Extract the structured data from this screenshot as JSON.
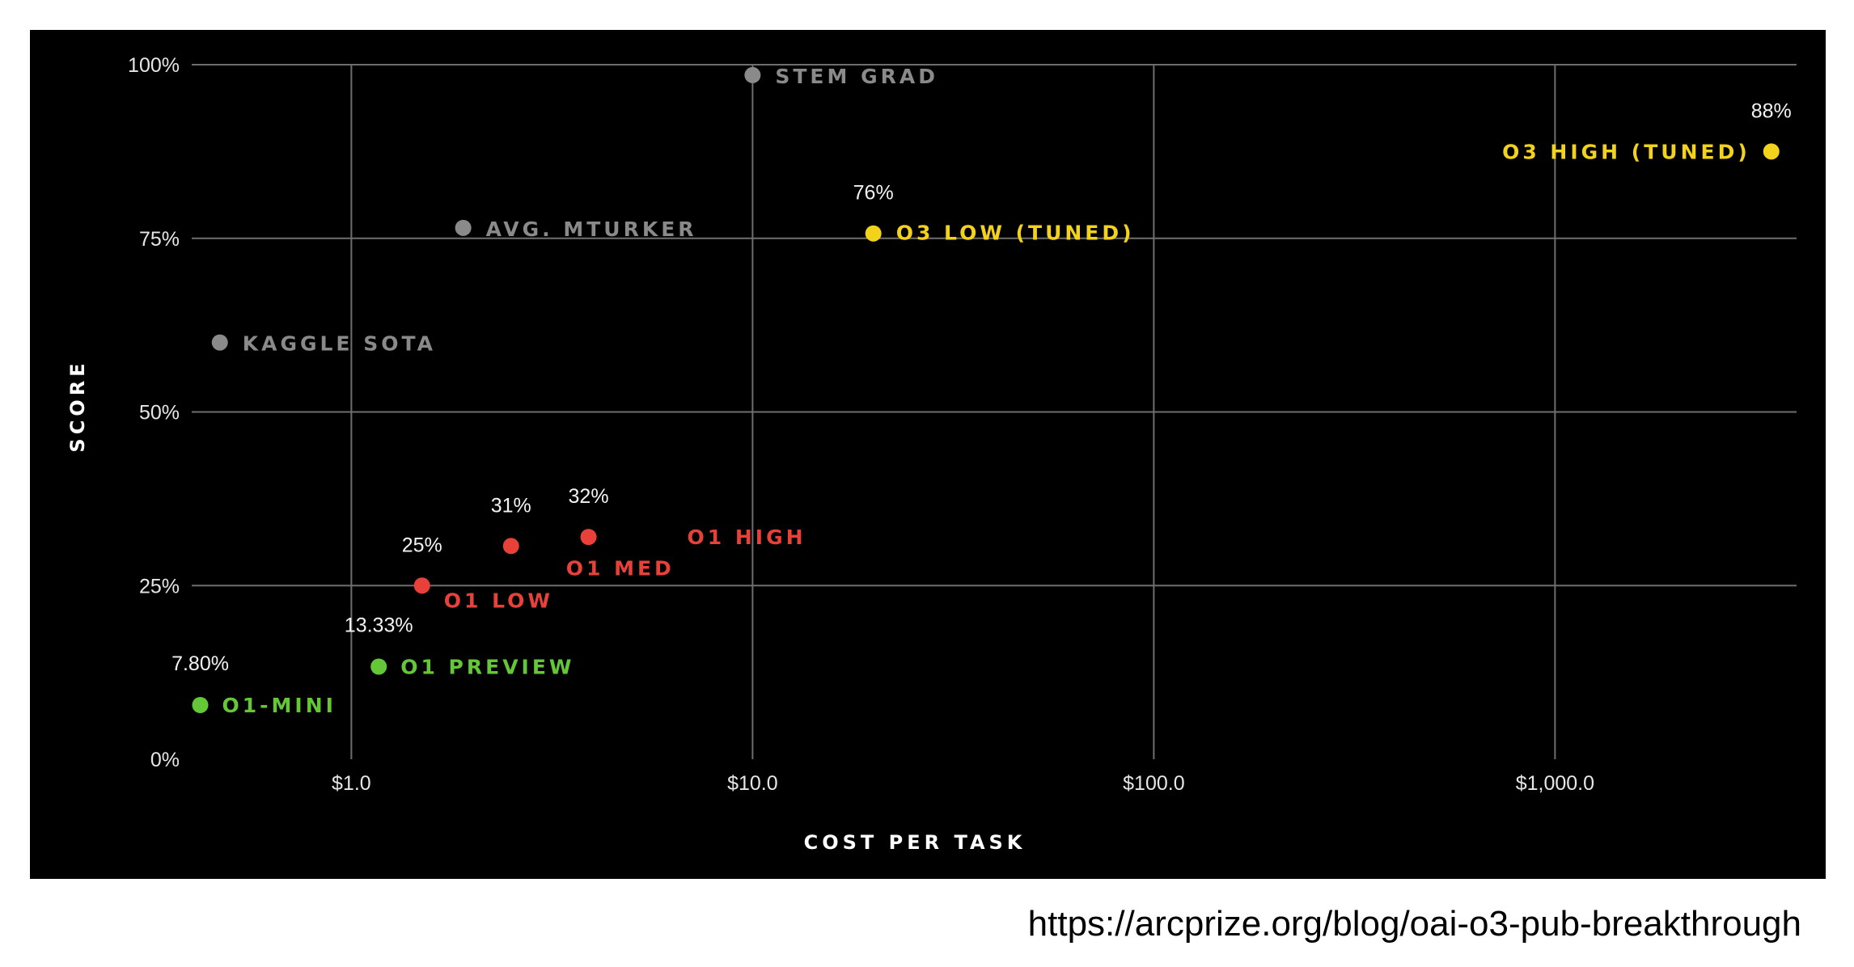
{
  "source_url": "https://arcprize.org/blog/oai-o3-pub-breakthrough",
  "colors": {
    "background": "#000000",
    "grid": "#6e6e6e",
    "human": "#8a8a8a",
    "o1": "#e8413a",
    "preview": "#63c738",
    "o3": "#f2d21a"
  },
  "chart_data": {
    "type": "scatter",
    "xlabel": "COST PER TASK",
    "ylabel": "SCORE",
    "x_scale": "log",
    "xlim": [
      0.4,
      4000
    ],
    "ylim": [
      0,
      100
    ],
    "x_ticks": [
      {
        "value": 1,
        "label": "$1.0"
      },
      {
        "value": 10,
        "label": "$10.0"
      },
      {
        "value": 100,
        "label": "$100.0"
      },
      {
        "value": 1000,
        "label": "$1,000.0"
      }
    ],
    "y_ticks": [
      {
        "value": 0,
        "label": "0%"
      },
      {
        "value": 25,
        "label": "25%"
      },
      {
        "value": 50,
        "label": "50%"
      },
      {
        "value": 75,
        "label": "75%"
      },
      {
        "value": 100,
        "label": "100%"
      }
    ],
    "grid": true,
    "points": [
      {
        "name": "STEM GRAD",
        "x": 10,
        "y": 98.5,
        "value_label": "",
        "group": "human"
      },
      {
        "name": "AVG. MTURKER",
        "x": 1.9,
        "y": 76.5,
        "value_label": "",
        "group": "human"
      },
      {
        "name": "KAGGLE SOTA",
        "x": 0.47,
        "y": 60,
        "value_label": "",
        "group": "human"
      },
      {
        "name": "O3 HIGH (TUNED)",
        "x": 3460,
        "y": 87.5,
        "value_label": "88%",
        "group": "o3"
      },
      {
        "name": "O3 LOW (TUNED)",
        "x": 20,
        "y": 75.7,
        "value_label": "76%",
        "group": "o3"
      },
      {
        "name": "O1 HIGH",
        "x": 3.9,
        "y": 32,
        "value_label": "32%",
        "group": "o1"
      },
      {
        "name": "O1 MED",
        "x": 2.5,
        "y": 30.7,
        "value_label": "31%",
        "group": "o1"
      },
      {
        "name": "O1 LOW",
        "x": 1.5,
        "y": 25,
        "value_label": "25%",
        "group": "o1"
      },
      {
        "name": "O1 PREVIEW",
        "x": 1.17,
        "y": 13.33,
        "value_label": "13.33%",
        "group": "preview"
      },
      {
        "name": "O1-MINI",
        "x": 0.42,
        "y": 7.8,
        "value_label": "7.80%",
        "group": "preview"
      }
    ]
  }
}
